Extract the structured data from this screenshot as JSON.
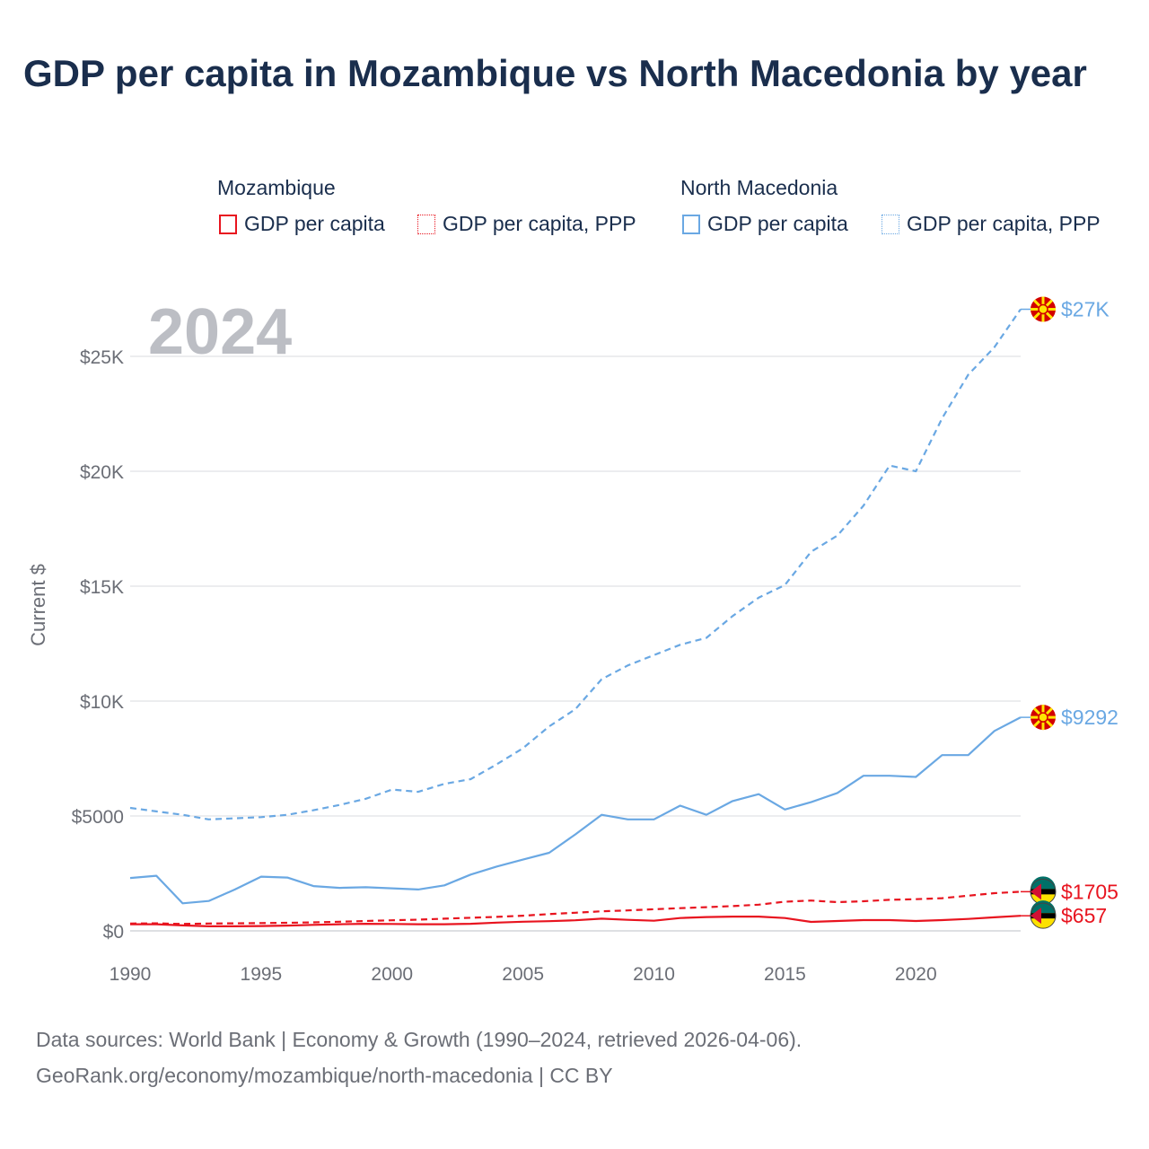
{
  "title": "GDP per capita in Mozambique vs North Macedonia by year",
  "legend": {
    "groups": [
      {
        "country": "Mozambique",
        "items": [
          "GDP per capita",
          "GDP per capita, PPP"
        ]
      },
      {
        "country": "North Macedonia",
        "items": [
          "GDP per capita",
          "GDP per capita, PPP"
        ]
      }
    ]
  },
  "colors": {
    "mozambique": "#e8141f",
    "north_macedonia": "#6aa8e3"
  },
  "year_watermark": "2024",
  "source": {
    "line1": "Data sources: World Bank | Economy & Growth (1990–2024, retrieved 2026-04-06).",
    "line2": "GeoRank.org/economy/mozambique/north-macedonia | CC BY"
  },
  "chart_data": {
    "type": "line",
    "title": "GDP per capita in Mozambique vs North Macedonia by year",
    "xlabel": "",
    "ylabel": "Current $",
    "xlim": [
      1990,
      2024
    ],
    "ylim": [
      0,
      27000
    ],
    "x_ticks": [
      1990,
      1995,
      2000,
      2005,
      2010,
      2015,
      2020
    ],
    "x_tick_labels": [
      "1990",
      "1995",
      "2000",
      "2005",
      "2010",
      "2015",
      "2020"
    ],
    "y_ticks": [
      0,
      5000,
      10000,
      15000,
      20000,
      25000
    ],
    "y_tick_labels": [
      "$0",
      "$5000",
      "$10K",
      "$15K",
      "$20K",
      "$25K"
    ],
    "grid": true,
    "legend_position": "top",
    "x": [
      1990,
      1991,
      1992,
      1993,
      1994,
      1995,
      1996,
      1997,
      1998,
      1999,
      2000,
      2001,
      2002,
      2003,
      2004,
      2005,
      2006,
      2007,
      2008,
      2009,
      2010,
      2011,
      2012,
      2013,
      2014,
      2015,
      2016,
      2017,
      2018,
      2019,
      2020,
      2021,
      2022,
      2023,
      2024
    ],
    "series": [
      {
        "name": "North Macedonia GDP per capita, PPP",
        "country": "north_macedonia",
        "style": "dashed",
        "end_label": "$27K",
        "values": [
          5350,
          5200,
          5050,
          4850,
          4900,
          4950,
          5050,
          5250,
          5480,
          5750,
          6150,
          6050,
          6400,
          6600,
          7250,
          7950,
          8900,
          9650,
          10950,
          11550,
          12000,
          12450,
          12750,
          13700,
          14500,
          15050,
          16500,
          17200,
          18500,
          20250,
          20000,
          22300,
          24200,
          25400,
          27050
        ]
      },
      {
        "name": "North Macedonia GDP per capita",
        "country": "north_macedonia",
        "style": "solid",
        "end_label": "$9292",
        "values": [
          2300,
          2400,
          1200,
          1300,
          1800,
          2360,
          2320,
          1950,
          1870,
          1900,
          1850,
          1800,
          1980,
          2450,
          2800,
          3100,
          3400,
          4200,
          5050,
          4850,
          4850,
          5450,
          5050,
          5650,
          5950,
          5280,
          5600,
          6000,
          6750,
          6750,
          6700,
          7650,
          7650,
          8700,
          9292
        ]
      },
      {
        "name": "Mozambique GDP per capita, PPP",
        "country": "mozambique",
        "style": "dashed",
        "end_label": "$1705",
        "values": [
          320,
          330,
          300,
          320,
          330,
          340,
          350,
          370,
          400,
          430,
          460,
          490,
          530,
          570,
          610,
          660,
          730,
          790,
          850,
          890,
          940,
          990,
          1030,
          1080,
          1140,
          1270,
          1320,
          1250,
          1290,
          1350,
          1380,
          1420,
          1530,
          1640,
          1705
        ]
      },
      {
        "name": "Mozambique GDP per capita",
        "country": "mozambique",
        "style": "solid",
        "end_label": "$657",
        "values": [
          290,
          290,
          240,
          200,
          200,
          210,
          230,
          260,
          290,
          310,
          300,
          290,
          290,
          310,
          360,
          400,
          420,
          460,
          530,
          480,
          440,
          560,
          600,
          620,
          620,
          560,
          390,
          430,
          470,
          470,
          430,
          470,
          520,
          590,
          657
        ]
      }
    ]
  }
}
